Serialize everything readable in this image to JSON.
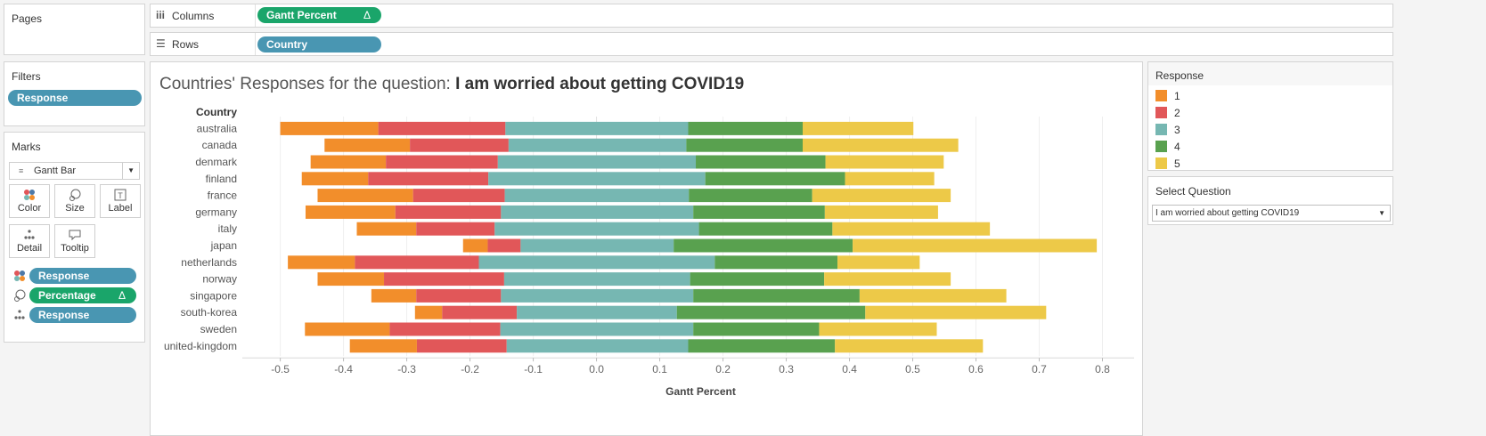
{
  "pages": {
    "title": "Pages"
  },
  "shelves": {
    "columns": {
      "label": "Columns",
      "pill": "Gantt Percent",
      "pill_icon": "Δ"
    },
    "rows": {
      "label": "Rows",
      "pill": "Country"
    }
  },
  "filters": {
    "title": "Filters",
    "pill": "Response"
  },
  "marks": {
    "title": "Marks",
    "type": "Gantt Bar",
    "cards": [
      {
        "label": "Color",
        "icon": "color-icon"
      },
      {
        "label": "Size",
        "icon": "size-icon"
      },
      {
        "label": "Label",
        "icon": "label-icon"
      },
      {
        "label": "Detail",
        "icon": "detail-icon"
      },
      {
        "label": "Tooltip",
        "icon": "tooltip-icon"
      }
    ],
    "fields": [
      {
        "icon": "color-icon",
        "label": "Response",
        "color": "#4996b2"
      },
      {
        "icon": "size-icon",
        "label": "Percentage",
        "color": "#1aa56a",
        "suffix": "Δ"
      },
      {
        "icon": "detail-icon",
        "label": "Response",
        "color": "#4996b2"
      }
    ]
  },
  "view": {
    "title_prefix": "Countries' Responses for the question: ",
    "title_bold": "I am worried about getting COVID19"
  },
  "legend": {
    "title": "Response",
    "items": [
      {
        "label": "1",
        "color": "#f28e2b"
      },
      {
        "label": "2",
        "color": "#e15759"
      },
      {
        "label": "3",
        "color": "#76b7b2"
      },
      {
        "label": "4",
        "color": "#59a14f"
      },
      {
        "label": "5",
        "color": "#edc948"
      }
    ]
  },
  "parameter": {
    "title": "Select Question",
    "value": "I am worried about getting COVID19"
  },
  "chart_data": {
    "type": "bar",
    "orientation": "horizontal-diverging-stacked",
    "row_header": "Country",
    "xlabel": "Gantt Percent",
    "xlim": [
      -0.56,
      0.85
    ],
    "xticks": [
      -0.5,
      -0.4,
      -0.3,
      -0.2,
      -0.1,
      0.0,
      0.1,
      0.2,
      0.3,
      0.4,
      0.5,
      0.6,
      0.7,
      0.8
    ],
    "xtick_labels": [
      "-0.5",
      "-0.4",
      "-0.3",
      "-0.2",
      "-0.1",
      "0.0",
      "0.1",
      "0.2",
      "0.3",
      "0.4",
      "0.5",
      "0.6",
      "0.7",
      "0.8"
    ],
    "grid": true,
    "series_names": [
      "1",
      "2",
      "3",
      "4",
      "5"
    ],
    "colors": [
      "#f28e2b",
      "#e15759",
      "#76b7b2",
      "#59a14f",
      "#edc948"
    ],
    "categories": [
      "australia",
      "canada",
      "denmark",
      "finland",
      "france",
      "germany",
      "italy",
      "japan",
      "netherlands",
      "norway",
      "singapore",
      "south-korea",
      "sweden",
      "united-kingdom"
    ],
    "boundaries": [
      [
        -0.5,
        -0.345,
        -0.144,
        0.145,
        0.326,
        0.501
      ],
      [
        -0.43,
        -0.295,
        -0.139,
        0.142,
        0.326,
        0.572
      ],
      [
        -0.452,
        -0.333,
        -0.156,
        0.157,
        0.362,
        0.549
      ],
      [
        -0.466,
        -0.361,
        -0.171,
        0.172,
        0.393,
        0.534
      ],
      [
        -0.441,
        -0.29,
        -0.145,
        0.146,
        0.341,
        0.56
      ],
      [
        -0.46,
        -0.318,
        -0.151,
        0.153,
        0.361,
        0.54
      ],
      [
        -0.379,
        -0.285,
        -0.161,
        0.162,
        0.373,
        0.622
      ],
      [
        -0.211,
        -0.172,
        -0.12,
        0.122,
        0.405,
        0.791
      ],
      [
        -0.488,
        -0.382,
        -0.186,
        0.187,
        0.381,
        0.511
      ],
      [
        -0.441,
        -0.336,
        -0.146,
        0.148,
        0.36,
        0.56
      ],
      [
        -0.356,
        -0.285,
        -0.151,
        0.153,
        0.416,
        0.648
      ],
      [
        -0.287,
        -0.244,
        -0.126,
        0.127,
        0.425,
        0.711
      ],
      [
        -0.461,
        -0.327,
        -0.152,
        0.153,
        0.352,
        0.538
      ],
      [
        -0.39,
        -0.284,
        -0.142,
        0.145,
        0.377,
        0.611
      ]
    ]
  }
}
